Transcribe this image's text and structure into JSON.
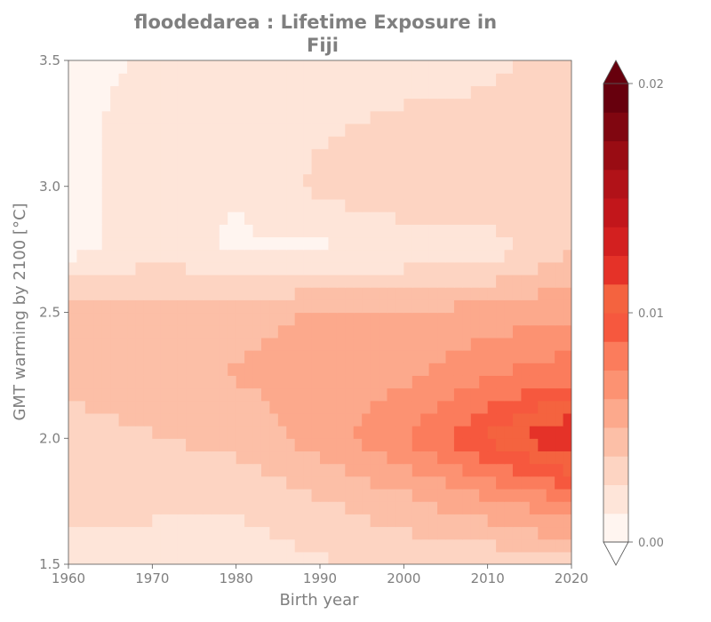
{
  "chart_data": {
    "type": "heatmap",
    "title_lines": [
      "floodedarea : Lifetime Exposure in",
      "Fiji"
    ],
    "xlabel": "Birth year",
    "ylabel": "GMT warming by 2100 [°C]",
    "xlim": [
      1960,
      2020
    ],
    "ylim": [
      1.5,
      3.5
    ],
    "xticks": [
      1960,
      1970,
      1980,
      1990,
      2000,
      2010,
      2020
    ],
    "xtick_labels": [
      "1960",
      "1970",
      "1980",
      "1990",
      "2000",
      "2010",
      "2020"
    ],
    "yticks": [
      1.5,
      2.0,
      2.5,
      3.0,
      3.5
    ],
    "ytick_labels": [
      "1.5",
      "2.0",
      "2.5",
      "3.0",
      "3.5"
    ],
    "colormap": "Reds",
    "colorbar": {
      "range": [
        0.0,
        0.02
      ],
      "levels": [
        0.0,
        0.0014,
        0.0027,
        0.0041,
        0.0054,
        0.0068,
        0.0081,
        0.0095,
        0.0108,
        0.0122,
        0.0135,
        0.0149,
        0.0162,
        0.0176,
        0.0189,
        0.02
      ],
      "colors": [
        "#fff5f0",
        "#fee5d9",
        "#fdd4c2",
        "#fcbfa7",
        "#fca98c",
        "#fc9272",
        "#fb7c5c",
        "#f6583e",
        "#f4633f",
        "#e53228",
        "#d32020",
        "#c2161b",
        "#b11218",
        "#990c13",
        "#800610",
        "#67000d"
      ],
      "extend": "both",
      "tick_values": [
        0.0,
        0.01,
        0.02
      ],
      "tick_labels": [
        "0.00",
        "0.01",
        "0.02"
      ]
    },
    "x": [
      1960,
      1970,
      1980,
      1990,
      2000,
      2010,
      2020
    ],
    "y": [
      1.5,
      1.75,
      2.0,
      2.25,
      2.5,
      2.75,
      3.0,
      3.25,
      3.5
    ],
    "z": [
      [
        0.002,
        0.002,
        0.0018,
        0.0025,
        0.003,
        0.003,
        0.0035
      ],
      [
        0.003,
        0.003,
        0.003,
        0.004,
        0.005,
        0.0065,
        0.008
      ],
      [
        0.0035,
        0.004,
        0.0045,
        0.006,
        0.008,
        0.011,
        0.014
      ],
      [
        0.0045,
        0.005,
        0.0055,
        0.006,
        0.0065,
        0.008,
        0.009
      ],
      [
        0.0045,
        0.005,
        0.005,
        0.0055,
        0.0055,
        0.006,
        0.0065
      ],
      [
        0.001,
        0.002,
        0.0012,
        0.0012,
        0.0015,
        0.002,
        0.004
      ],
      [
        0.001,
        0.002,
        0.0015,
        0.003,
        0.004,
        0.004,
        0.004
      ],
      [
        0.001,
        0.002,
        0.002,
        0.0025,
        0.003,
        0.003,
        0.0035
      ],
      [
        0.001,
        0.0015,
        0.0015,
        0.002,
        0.002,
        0.0025,
        0.003
      ]
    ]
  }
}
